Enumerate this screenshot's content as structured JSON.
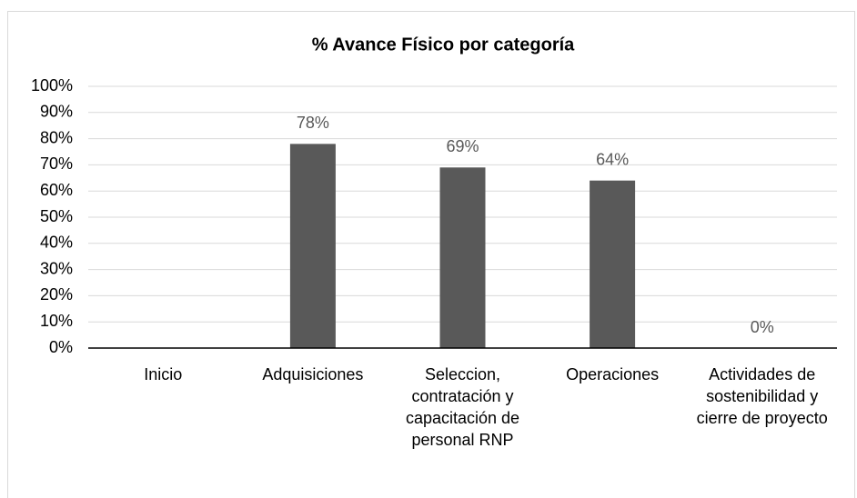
{
  "chart_data": {
    "type": "bar",
    "title": "% Avance Físico por categoría",
    "categories": [
      "Inicio",
      "Adquisiciones",
      "Seleccion, contratación y capacitación de personal RNP",
      "Operaciones",
      "Actividades de sostenibilidad y cierre de proyecto"
    ],
    "values": [
      null,
      78,
      69,
      64,
      0
    ],
    "value_labels": [
      null,
      "78%",
      "69%",
      "64%",
      "0%"
    ],
    "color": "#595959",
    "ylim": [
      0,
      100
    ],
    "yticks": [
      {
        "value": 0,
        "label": "0%"
      },
      {
        "value": 10,
        "label": "10%"
      },
      {
        "value": 20,
        "label": "20%"
      },
      {
        "value": 30,
        "label": "30%"
      },
      {
        "value": 40,
        "label": "40%"
      },
      {
        "value": 50,
        "label": "50%"
      },
      {
        "value": 60,
        "label": "60%"
      },
      {
        "value": 70,
        "label": "70%"
      },
      {
        "value": 80,
        "label": "80%"
      },
      {
        "value": 90,
        "label": "90%"
      },
      {
        "value": 100,
        "label": "100%"
      }
    ],
    "grid": true
  }
}
